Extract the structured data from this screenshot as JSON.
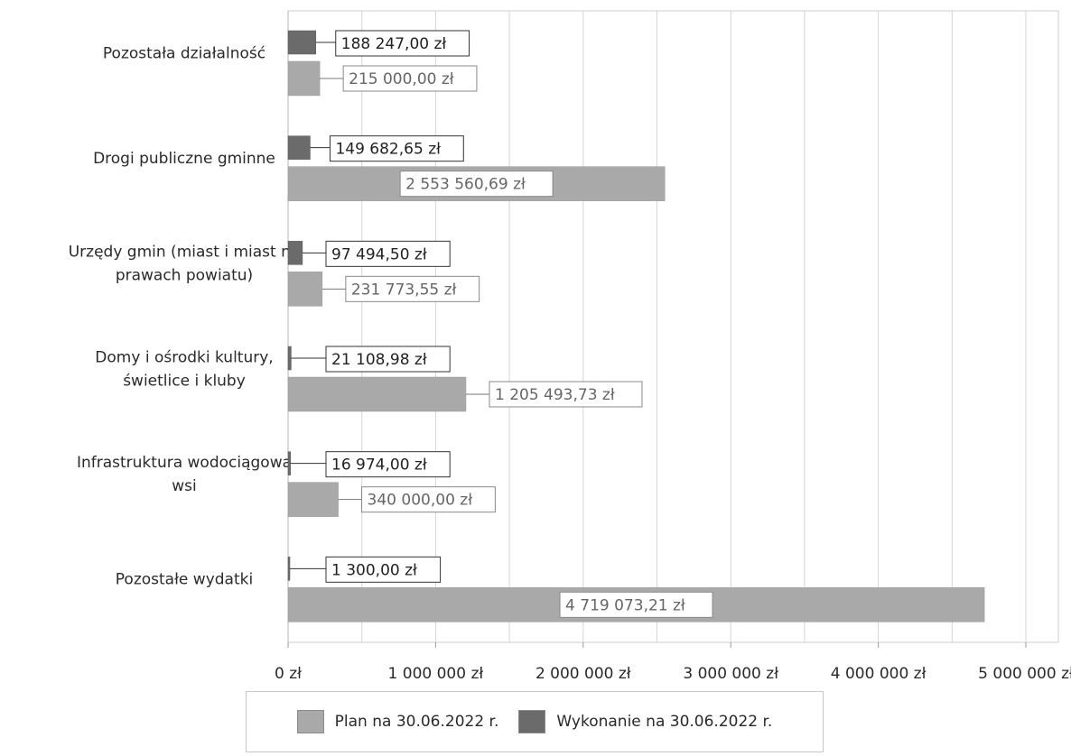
{
  "chart_data": {
    "type": "bar",
    "orientation": "horizontal",
    "categories": [
      [
        "Pozostała działalność"
      ],
      [
        "Drogi publiczne gminne"
      ],
      [
        "Urzędy gmin (miast i miast na",
        "prawach powiatu)"
      ],
      [
        "Domy i ośrodki kultury,",
        "świetlice i kluby"
      ],
      [
        "Infrastruktura wodociągowa",
        "wsi"
      ],
      [
        "Pozostałe wydatki"
      ]
    ],
    "series": [
      {
        "name": "Wykonanie na 30.06.2022 r.",
        "color": "#6b6b6b",
        "values": [
          188247.0,
          149682.65,
          97494.5,
          21108.98,
          16974.0,
          1300.0
        ],
        "labels": [
          "188 247,00 zł",
          "149 682,65 zł",
          "97 494,50 zł",
          "21 108,98 zł",
          "16 974,00 zł",
          "1 300,00 zł"
        ]
      },
      {
        "name": "Plan na 30.06.2022 r.",
        "color": "#a9a9a9",
        "values": [
          215000.0,
          2553560.69,
          231773.55,
          1205493.73,
          340000.0,
          4719073.21
        ],
        "labels": [
          "215 000,00 zł",
          "2 553 560,69 zł",
          "231 773,55 zł",
          "1 205 493,73 zł",
          "340 000,00 zł",
          "4 719 073,21 zł"
        ]
      }
    ],
    "xticks": [
      "0 zł",
      "1 000 000 zł",
      "2 000 000 zł",
      "3 000 000 zł",
      "4 000 000 zł",
      "5 000 000 zł"
    ],
    "xlim": [
      0,
      5000000
    ],
    "grid": true,
    "legend_position": "bottom"
  },
  "legend": {
    "plan_label": "Plan na 30.06.2022 r.",
    "done_label": "Wykonanie na 30.06.2022 r.",
    "plan_color": "#a9a9a9",
    "done_color": "#6b6b6b"
  }
}
